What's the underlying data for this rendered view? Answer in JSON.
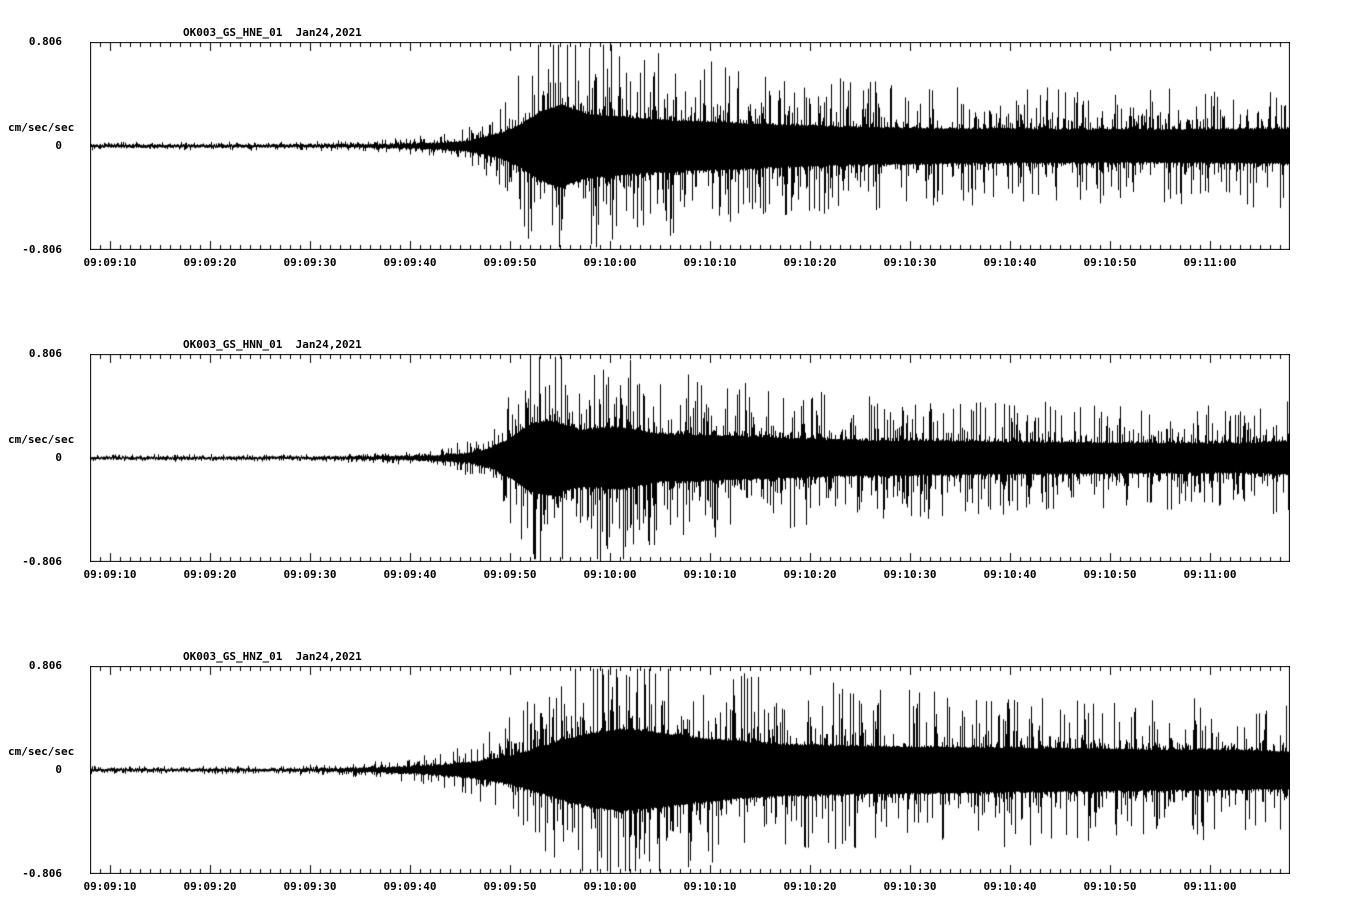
{
  "page": {
    "background_color": "#ffffff",
    "trace_color": "#000000"
  },
  "chart_data": [
    {
      "type": "line",
      "subtype": "seismogram",
      "title": "OK003_GS_HNE_01  Jan24,2021",
      "channel": "HNE",
      "date": "Jan24,2021",
      "ylabel": "cm/sec/sec",
      "ylim": [
        -0.806,
        0.806
      ],
      "ytick_labels": [
        "0.806",
        "0",
        "-0.806"
      ],
      "xtick_labels": [
        "09:09:10",
        "09:09:20",
        "09:09:30",
        "09:09:40",
        "09:09:50",
        "09:10:00",
        "09:10:10",
        "09:10:20",
        "09:10:30",
        "09:10:40",
        "09:10:50",
        "09:11:00"
      ],
      "seconds_per_tick": 10,
      "trace_color": "#000000",
      "envelope": {
        "t_seconds": [
          0,
          20,
          27,
          31,
          35,
          38,
          41,
          43,
          45,
          47,
          50,
          54,
          58,
          63,
          68,
          75,
          85,
          95,
          105,
          115,
          120
        ],
        "amplitude_cm_s2": [
          0.022,
          0.022,
          0.028,
          0.04,
          0.06,
          0.1,
          0.22,
          0.38,
          0.6,
          0.72,
          0.55,
          0.5,
          0.45,
          0.42,
          0.38,
          0.34,
          0.31,
          0.3,
          0.29,
          0.3,
          0.31
        ]
      }
    },
    {
      "type": "line",
      "subtype": "seismogram",
      "title": "OK003_GS_HNN_01  Jan24,2021",
      "channel": "HNN",
      "date": "Jan24,2021",
      "ylabel": "cm/sec/sec",
      "ylim": [
        -0.806,
        0.806
      ],
      "ytick_labels": [
        "0.806",
        "0",
        "-0.806"
      ],
      "xtick_labels": [
        "09:09:10",
        "09:09:20",
        "09:09:30",
        "09:09:40",
        "09:09:50",
        "09:10:00",
        "09:10:10",
        "09:10:20",
        "09:10:30",
        "09:10:40",
        "09:10:50",
        "09:11:00"
      ],
      "seconds_per_tick": 10,
      "trace_color": "#000000",
      "envelope": {
        "t_seconds": [
          0,
          20,
          27,
          31,
          35,
          38,
          40,
          42,
          44,
          46,
          49,
          53,
          57,
          62,
          68,
          75,
          85,
          95,
          105,
          115,
          120
        ],
        "amplitude_cm_s2": [
          0.018,
          0.018,
          0.024,
          0.035,
          0.05,
          0.09,
          0.18,
          0.35,
          0.6,
          0.66,
          0.5,
          0.55,
          0.42,
          0.4,
          0.36,
          0.32,
          0.3,
          0.28,
          0.27,
          0.26,
          0.3
        ]
      }
    },
    {
      "type": "line",
      "subtype": "seismogram",
      "title": "OK003_GS_HNZ_01  Jan24,2021",
      "channel": "HNZ",
      "date": "Jan24,2021",
      "ylabel": "cm/sec/sec",
      "ylim": [
        -0.806,
        0.806
      ],
      "ytick_labels": [
        "0.806",
        "0",
        "-0.806"
      ],
      "xtick_labels": [
        "09:09:10",
        "09:09:20",
        "09:09:30",
        "09:09:40",
        "09:09:50",
        "09:10:00",
        "09:10:10",
        "09:10:20",
        "09:10:30",
        "09:10:40",
        "09:10:50",
        "09:11:00"
      ],
      "seconds_per_tick": 10,
      "trace_color": "#000000",
      "envelope": {
        "t_seconds": [
          0,
          18,
          25,
          30,
          34,
          38,
          41,
          44,
          47,
          50,
          53,
          56,
          60,
          65,
          70,
          78,
          88,
          98,
          108,
          115,
          120
        ],
        "amplitude_cm_s2": [
          0.02,
          0.02,
          0.03,
          0.05,
          0.08,
          0.14,
          0.22,
          0.35,
          0.52,
          0.65,
          0.72,
          0.68,
          0.58,
          0.5,
          0.45,
          0.42,
          0.4,
          0.38,
          0.36,
          0.35,
          0.33
        ]
      }
    }
  ]
}
